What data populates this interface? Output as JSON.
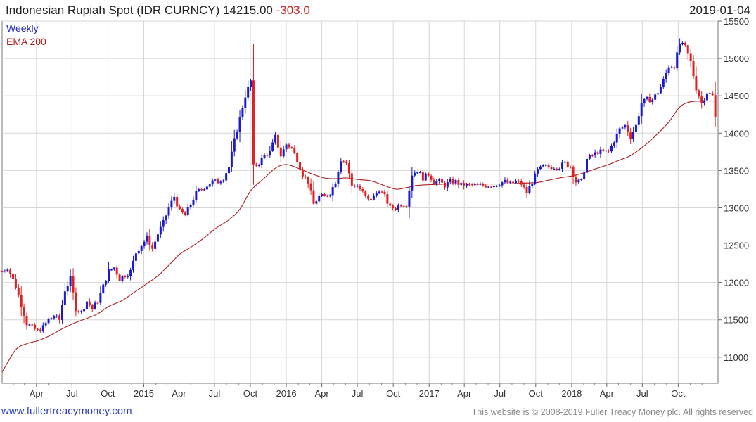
{
  "header": {
    "title": "Indonesian Rupiah Spot (IDR CURNCY) 14215.00",
    "change": "-303.0",
    "date": "2019-01-04"
  },
  "legend": {
    "weekly": "Weekly",
    "ema": "EMA 200"
  },
  "footer": {
    "link": "www.fullertreacymoney.com",
    "copyright": "This website is © 2008-2019 Fuller Treacy Money plc. All rights reserved"
  },
  "colors": {
    "up": "#1a1acc",
    "down": "#e02020",
    "ema": "#b01c1c",
    "grid": "#d6d6d6",
    "weekly_label": "#2a2ab8",
    "ema_label": "#b01c1c"
  },
  "chart_data": {
    "type": "candlestick",
    "x_axis": {
      "ticks": [
        {
          "label": "Apr",
          "date": "2014-04-01"
        },
        {
          "label": "Jul",
          "date": "2014-07-01"
        },
        {
          "label": "Oct",
          "date": "2014-10-01"
        },
        {
          "label": "2015",
          "date": "2015-01-01"
        },
        {
          "label": "Apr",
          "date": "2015-04-01"
        },
        {
          "label": "Jul",
          "date": "2015-07-01"
        },
        {
          "label": "Oct",
          "date": "2015-10-01"
        },
        {
          "label": "2016",
          "date": "2016-01-01"
        },
        {
          "label": "Apr",
          "date": "2016-04-01"
        },
        {
          "label": "Jul",
          "date": "2016-07-01"
        },
        {
          "label": "Oct",
          "date": "2016-10-01"
        },
        {
          "label": "2017",
          "date": "2017-01-01"
        },
        {
          "label": "Apr",
          "date": "2017-04-01"
        },
        {
          "label": "Jul",
          "date": "2017-07-01"
        },
        {
          "label": "Oct",
          "date": "2017-10-01"
        },
        {
          "label": "2018",
          "date": "2018-01-01"
        },
        {
          "label": "Apr",
          "date": "2018-04-01"
        },
        {
          "label": "Jul",
          "date": "2018-07-01"
        },
        {
          "label": "Oct",
          "date": "2018-10-01"
        }
      ],
      "range": [
        "2014-01-03",
        "2019-01-11"
      ]
    },
    "y_axis": {
      "ticks": [
        11000,
        11500,
        12000,
        12500,
        13000,
        13500,
        14000,
        14500,
        15000,
        15500
      ],
      "range": [
        10650,
        15500
      ],
      "position": "right"
    },
    "grid": true,
    "legend_position": "top-left",
    "close_path": [
      [
        "2014-01-03",
        12150
      ],
      [
        "2014-01-17",
        12200
      ],
      [
        "2014-02-07",
        11950
      ],
      [
        "2014-02-21",
        11700
      ],
      [
        "2014-03-07",
        11450
      ],
      [
        "2014-03-21",
        11400
      ],
      [
        "2014-04-04",
        11350
      ],
      [
        "2014-04-18",
        11400
      ],
      [
        "2014-05-02",
        11500
      ],
      [
        "2014-05-16",
        11550
      ],
      [
        "2014-05-30",
        11500
      ],
      [
        "2014-06-13",
        11900
      ],
      [
        "2014-06-27",
        12050
      ],
      [
        "2014-07-11",
        11650
      ],
      [
        "2014-07-25",
        11600
      ],
      [
        "2014-08-08",
        11750
      ],
      [
        "2014-08-22",
        11650
      ],
      [
        "2014-09-05",
        11750
      ],
      [
        "2014-09-19",
        11950
      ],
      [
        "2014-10-03",
        12150
      ],
      [
        "2014-10-17",
        12200
      ],
      [
        "2014-10-31",
        12050
      ],
      [
        "2014-11-14",
        12100
      ],
      [
        "2014-11-28",
        12150
      ],
      [
        "2014-12-12",
        12400
      ],
      [
        "2014-12-26",
        12500
      ],
      [
        "2015-01-09",
        12600
      ],
      [
        "2015-01-23",
        12450
      ],
      [
        "2015-02-06",
        12650
      ],
      [
        "2015-02-20",
        12800
      ],
      [
        "2015-03-06",
        13000
      ],
      [
        "2015-03-20",
        13150
      ],
      [
        "2015-04-03",
        12950
      ],
      [
        "2015-04-17",
        12900
      ],
      [
        "2015-05-01",
        13050
      ],
      [
        "2015-05-15",
        13200
      ],
      [
        "2015-05-29",
        13250
      ],
      [
        "2015-06-12",
        13300
      ],
      [
        "2015-06-26",
        13350
      ],
      [
        "2015-07-10",
        13350
      ],
      [
        "2015-07-24",
        13400
      ],
      [
        "2015-08-07",
        13550
      ],
      [
        "2015-08-21",
        13900
      ],
      [
        "2015-09-04",
        14200
      ],
      [
        "2015-09-18",
        14500
      ],
      [
        "2015-10-02",
        14700
      ],
      [
        "2015-10-09",
        13550
      ],
      [
        "2015-10-23",
        13600
      ],
      [
        "2015-11-06",
        13700
      ],
      [
        "2015-11-20",
        13750
      ],
      [
        "2015-12-04",
        13950
      ],
      [
        "2015-12-18",
        13700
      ],
      [
        "2016-01-01",
        13850
      ],
      [
        "2016-01-15",
        13800
      ],
      [
        "2016-01-29",
        13650
      ],
      [
        "2016-02-12",
        13450
      ],
      [
        "2016-02-26",
        13350
      ],
      [
        "2016-03-11",
        13050
      ],
      [
        "2016-03-25",
        13150
      ],
      [
        "2016-04-08",
        13150
      ],
      [
        "2016-04-22",
        13200
      ],
      [
        "2016-05-06",
        13350
      ],
      [
        "2016-05-20",
        13650
      ],
      [
        "2016-06-03",
        13600
      ],
      [
        "2016-06-17",
        13300
      ],
      [
        "2016-07-01",
        13300
      ],
      [
        "2016-07-15",
        13200
      ],
      [
        "2016-07-29",
        13100
      ],
      [
        "2016-08-12",
        13150
      ],
      [
        "2016-08-26",
        13250
      ],
      [
        "2016-09-09",
        13150
      ],
      [
        "2016-09-23",
        13000
      ],
      [
        "2016-10-07",
        13000
      ],
      [
        "2016-10-21",
        13050
      ],
      [
        "2016-11-04",
        13050
      ],
      [
        "2016-11-18",
        13450
      ],
      [
        "2016-12-02",
        13500
      ],
      [
        "2016-12-16",
        13400
      ],
      [
        "2016-12-30",
        13450
      ],
      [
        "2017-01-13",
        13350
      ],
      [
        "2017-01-27",
        13350
      ],
      [
        "2017-02-10",
        13300
      ],
      [
        "2017-02-24",
        13350
      ],
      [
        "2017-03-10",
        13350
      ],
      [
        "2017-03-24",
        13300
      ],
      [
        "2017-04-07",
        13300
      ],
      [
        "2017-04-21",
        13300
      ],
      [
        "2017-05-05",
        13300
      ],
      [
        "2017-05-19",
        13300
      ],
      [
        "2017-06-02",
        13300
      ],
      [
        "2017-06-16",
        13300
      ],
      [
        "2017-06-30",
        13330
      ],
      [
        "2017-07-14",
        13350
      ],
      [
        "2017-07-28",
        13320
      ],
      [
        "2017-08-11",
        13350
      ],
      [
        "2017-08-25",
        13320
      ],
      [
        "2017-09-08",
        13200
      ],
      [
        "2017-09-22",
        13350
      ],
      [
        "2017-10-06",
        13500
      ],
      [
        "2017-10-20",
        13550
      ],
      [
        "2017-11-03",
        13550
      ],
      [
        "2017-11-17",
        13550
      ],
      [
        "2017-12-01",
        13550
      ],
      [
        "2017-12-15",
        13600
      ],
      [
        "2017-12-29",
        13550
      ],
      [
        "2018-01-12",
        13350
      ],
      [
        "2018-01-26",
        13350
      ],
      [
        "2018-02-09",
        13650
      ],
      [
        "2018-02-23",
        13700
      ],
      [
        "2018-03-09",
        13750
      ],
      [
        "2018-03-23",
        13750
      ],
      [
        "2018-04-06",
        13750
      ],
      [
        "2018-04-20",
        13900
      ],
      [
        "2018-05-04",
        14050
      ],
      [
        "2018-05-18",
        14100
      ],
      [
        "2018-06-01",
        13950
      ],
      [
        "2018-06-15",
        14100
      ],
      [
        "2018-06-29",
        14400
      ],
      [
        "2018-07-13",
        14450
      ],
      [
        "2018-07-27",
        14450
      ],
      [
        "2018-08-10",
        14550
      ],
      [
        "2018-08-24",
        14700
      ],
      [
        "2018-09-07",
        14900
      ],
      [
        "2018-09-21",
        14900
      ],
      [
        "2018-10-05",
        15200
      ],
      [
        "2018-10-19",
        15150
      ],
      [
        "2018-11-02",
        14950
      ],
      [
        "2018-11-16",
        14600
      ],
      [
        "2018-11-30",
        14400
      ],
      [
        "2018-12-14",
        14550
      ],
      [
        "2018-12-28",
        14500
      ],
      [
        "2019-01-04",
        14215
      ]
    ],
    "ema_200": [
      [
        "2014-01-03",
        10800
      ],
      [
        "2014-02-07",
        11100
      ],
      [
        "2014-03-07",
        11180
      ],
      [
        "2014-04-04",
        11220
      ],
      [
        "2014-05-02",
        11280
      ],
      [
        "2014-06-06",
        11380
      ],
      [
        "2014-07-04",
        11450
      ],
      [
        "2014-08-08",
        11520
      ],
      [
        "2014-09-05",
        11580
      ],
      [
        "2014-10-03",
        11680
      ],
      [
        "2014-11-07",
        11760
      ],
      [
        "2014-12-05",
        11860
      ],
      [
        "2015-01-02",
        11960
      ],
      [
        "2015-02-06",
        12090
      ],
      [
        "2015-03-06",
        12230
      ],
      [
        "2015-04-03",
        12380
      ],
      [
        "2015-05-01",
        12470
      ],
      [
        "2015-06-05",
        12600
      ],
      [
        "2015-07-03",
        12720
      ],
      [
        "2015-08-07",
        12840
      ],
      [
        "2015-09-04",
        12980
      ],
      [
        "2015-10-02",
        13230
      ],
      [
        "2015-11-06",
        13400
      ],
      [
        "2015-12-04",
        13530
      ],
      [
        "2016-01-01",
        13580
      ],
      [
        "2016-02-05",
        13520
      ],
      [
        "2016-03-04",
        13460
      ],
      [
        "2016-04-08",
        13400
      ],
      [
        "2016-05-06",
        13390
      ],
      [
        "2016-06-03",
        13400
      ],
      [
        "2016-07-01",
        13380
      ],
      [
        "2016-08-05",
        13360
      ],
      [
        "2016-09-02",
        13310
      ],
      [
        "2016-10-07",
        13250
      ],
      [
        "2016-11-04",
        13270
      ],
      [
        "2016-12-02",
        13300
      ],
      [
        "2017-01-06",
        13310
      ],
      [
        "2017-03-03",
        13320
      ],
      [
        "2017-05-05",
        13320
      ],
      [
        "2017-07-07",
        13320
      ],
      [
        "2017-09-01",
        13330
      ],
      [
        "2017-10-06",
        13340
      ],
      [
        "2017-11-03",
        13370
      ],
      [
        "2017-12-01",
        13400
      ],
      [
        "2018-01-05",
        13430
      ],
      [
        "2018-02-02",
        13470
      ],
      [
        "2018-03-02",
        13520
      ],
      [
        "2018-04-06",
        13580
      ],
      [
        "2018-05-04",
        13640
      ],
      [
        "2018-06-01",
        13700
      ],
      [
        "2018-07-06",
        13830
      ],
      [
        "2018-08-03",
        13960
      ],
      [
        "2018-09-07",
        14150
      ],
      [
        "2018-10-05",
        14350
      ],
      [
        "2018-11-02",
        14420
      ],
      [
        "2018-12-07",
        14430
      ],
      [
        "2019-01-04",
        14430
      ]
    ]
  }
}
